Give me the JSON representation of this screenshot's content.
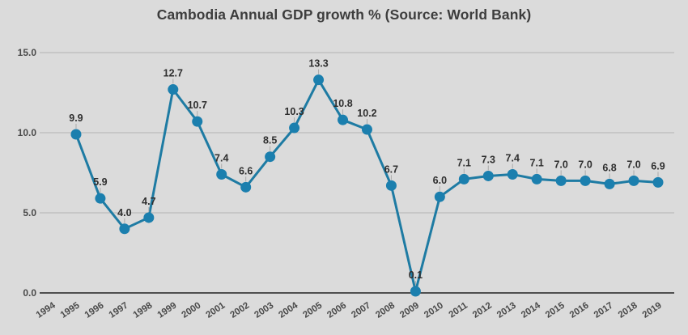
{
  "chart_data": {
    "type": "line",
    "title": "Cambodia Annual GDP growth % (Source: World Bank)",
    "x": [
      1995,
      1996,
      1997,
      1998,
      1999,
      2000,
      2001,
      2002,
      2003,
      2004,
      2005,
      2006,
      2007,
      2008,
      2009,
      2010,
      2011,
      2012,
      2013,
      2014,
      2015,
      2016,
      2017,
      2018,
      2019
    ],
    "values": [
      9.9,
      5.9,
      4.0,
      4.7,
      12.7,
      10.7,
      7.4,
      6.6,
      8.5,
      10.3,
      13.3,
      10.8,
      10.2,
      6.7,
      0.1,
      6.0,
      7.1,
      7.3,
      7.4,
      7.1,
      7.0,
      7.0,
      6.8,
      7.0,
      6.9
    ],
    "data_labels": [
      "9.9",
      "5.9",
      "4.0",
      "4.7",
      "12.7",
      "10.7",
      "7.4",
      "6.6",
      "8.5",
      "10.3",
      "13.3",
      "10.8",
      "10.2",
      "6.7",
      "0.1",
      "6.0",
      "7.1",
      "7.3",
      "7.4",
      "7.1",
      "7.0",
      "7.0",
      "6.8",
      "7.0",
      "6.9"
    ],
    "x_tick_labels": [
      "1994",
      "1995",
      "1996",
      "1997",
      "1998",
      "1999",
      "2000",
      "2001",
      "2002",
      "2003",
      "2004",
      "2005",
      "2006",
      "2007",
      "2008",
      "2009",
      "2010",
      "2011",
      "2012",
      "2013",
      "2014",
      "2015",
      "2016",
      "2017",
      "2018",
      "2019"
    ],
    "y_tick_values": [
      15,
      10,
      5,
      0
    ],
    "y_tick_labels": [
      "15.0",
      "10.0",
      "5.0",
      "0.0"
    ],
    "ylim": [
      0,
      15
    ],
    "grid": true,
    "legend": "none",
    "colors": {
      "line": "#1e7ba3",
      "marker": "#1b7fae",
      "grid": "#b3b3b3",
      "axis": "#4f4f4f",
      "tick_text": "#4a4a4a",
      "data_label": "#2e2e2e",
      "title": "#3d3d3d",
      "background": "#dbdbdb",
      "connector": "#ababab"
    }
  }
}
